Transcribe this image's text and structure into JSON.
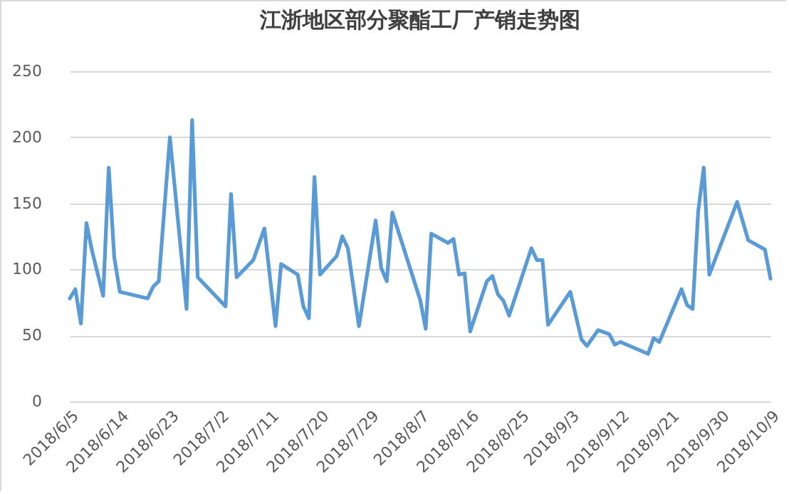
{
  "chart_data": {
    "type": "line",
    "title": "江浙地区部分聚酯工厂产销走势图",
    "x": [
      "2018-06-05",
      "2018-06-06",
      "2018-06-07",
      "2018-06-08",
      "2018-06-09",
      "2018-06-11",
      "2018-06-12",
      "2018-06-13",
      "2018-06-14",
      "2018-06-19",
      "2018-06-20",
      "2018-06-21",
      "2018-06-23",
      "2018-06-26",
      "2018-06-27",
      "2018-06-28",
      "2018-07-03",
      "2018-07-04",
      "2018-07-05",
      "2018-07-08",
      "2018-07-10",
      "2018-07-12",
      "2018-07-13",
      "2018-07-16",
      "2018-07-17",
      "2018-07-18",
      "2018-07-19",
      "2018-07-20",
      "2018-07-23",
      "2018-07-24",
      "2018-07-25",
      "2018-07-27",
      "2018-07-30",
      "2018-07-31",
      "2018-08-01",
      "2018-08-02",
      "2018-08-07",
      "2018-08-08",
      "2018-08-09",
      "2018-08-12",
      "2018-08-13",
      "2018-08-14",
      "2018-08-15",
      "2018-08-16",
      "2018-08-19",
      "2018-08-20",
      "2018-08-21",
      "2018-08-22",
      "2018-08-23",
      "2018-08-27",
      "2018-08-28",
      "2018-08-29",
      "2018-08-30",
      "2018-09-03",
      "2018-09-05",
      "2018-09-06",
      "2018-09-08",
      "2018-09-10",
      "2018-09-11",
      "2018-09-12",
      "2018-09-17",
      "2018-09-18",
      "2018-09-19",
      "2018-09-23",
      "2018-09-24",
      "2018-09-25",
      "2018-09-26",
      "2018-09-27",
      "2018-09-28",
      "2018-10-03",
      "2018-10-05",
      "2018-10-08",
      "2018-10-09"
    ],
    "series": [
      {
        "color": "#5b9bd5",
        "values": [
          78,
          85,
          59,
          135,
          114,
          80,
          177,
          109,
          83,
          78,
          87,
          91,
          200,
          70,
          213,
          94,
          72,
          157,
          94,
          107,
          131,
          57,
          104,
          96,
          72,
          63,
          170,
          96,
          110,
          125,
          116,
          57,
          137,
          101,
          91,
          143,
          77,
          55,
          127,
          120,
          123,
          96,
          97,
          53,
          91,
          95,
          81,
          76,
          65,
          116,
          107,
          107,
          58,
          83,
          47,
          42,
          54,
          51,
          43,
          45,
          36,
          48,
          45,
          85,
          73,
          70,
          144,
          177,
          96,
          151,
          122,
          115,
          93
        ]
      }
    ],
    "xlim": [
      "2018-06-05",
      "2018-10-09"
    ],
    "xticks": [
      {
        "value": "2018-06-05",
        "label": "2018/6/5"
      },
      {
        "value": "2018-06-14",
        "label": "2018/6/14"
      },
      {
        "value": "2018-06-23",
        "label": "2018/6/23"
      },
      {
        "value": "2018-07-02",
        "label": "2018/7/2"
      },
      {
        "value": "2018-07-11",
        "label": "2018/7/11"
      },
      {
        "value": "2018-07-20",
        "label": "2018/7/20"
      },
      {
        "value": "2018-07-29",
        "label": "2018/7/29"
      },
      {
        "value": "2018-08-07",
        "label": "2018/8/7"
      },
      {
        "value": "2018-08-16",
        "label": "2018/8/16"
      },
      {
        "value": "2018-08-25",
        "label": "2018/8/25"
      },
      {
        "value": "2018-09-03",
        "label": "2018/9/3"
      },
      {
        "value": "2018-09-12",
        "label": "2018/9/12"
      },
      {
        "value": "2018-09-21",
        "label": "2018/9/21"
      },
      {
        "value": "2018-09-30",
        "label": "2018/9/30"
      },
      {
        "value": "2018-10-09",
        "label": "2018/10/9"
      }
    ],
    "ylim": [
      0,
      250
    ],
    "yticks": [
      0,
      50,
      100,
      150,
      200,
      250
    ],
    "grid": "y",
    "marker": "none",
    "line_style": "solid"
  }
}
